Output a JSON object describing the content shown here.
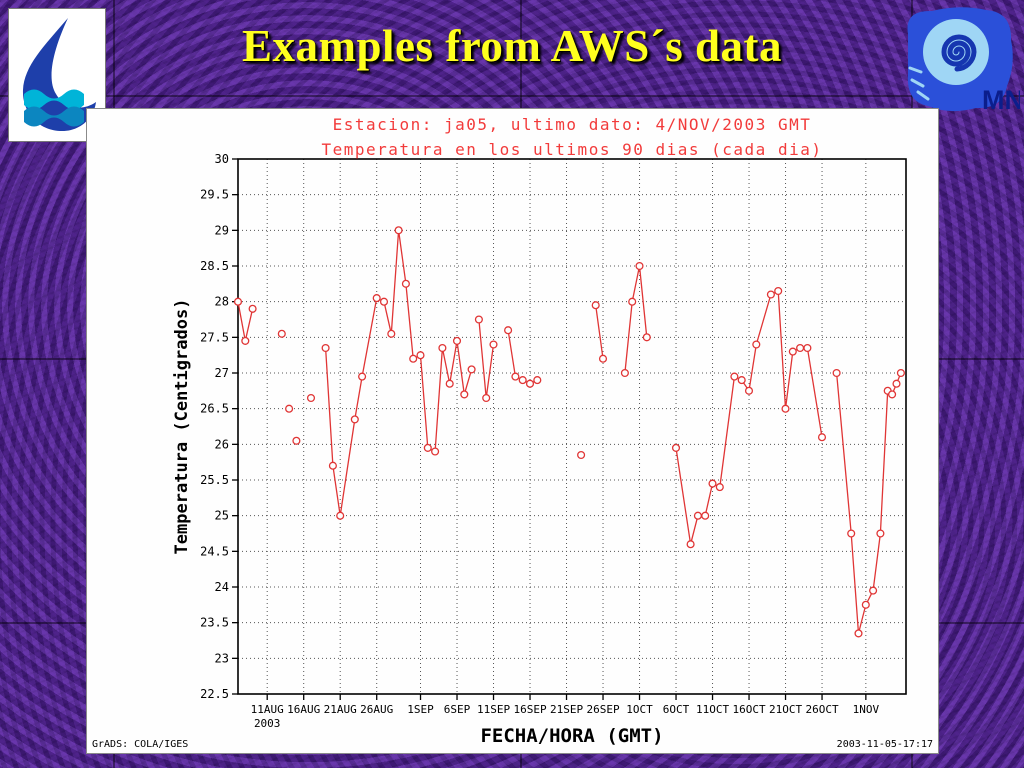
{
  "slide": {
    "title": "Examples from AWS´s data"
  },
  "logos": {
    "left": {
      "name": "water-drop-logo"
    },
    "right": {
      "name": "smn-spiral-logo",
      "text": "MN"
    }
  },
  "chart_data": {
    "type": "line",
    "station_title": "Estacion: ja05, ultimo dato: 4/NOV/2003 GMT",
    "subtitle": "Temperatura en los ultimos 90 dias (cada dia)",
    "ylabel": "Temperatura (Centigrados)",
    "xlabel": "FECHA/HORA (GMT)",
    "footer_left": "GrADS: COLA/IGES",
    "footer_right": "2003-11-05-17:17",
    "ylim": [
      22.5,
      30
    ],
    "ytick_step": 0.5,
    "xlim": [
      0,
      91.5
    ],
    "x_unit": "days since 2003-08-07",
    "year_label": "2003",
    "grid": "dotted",
    "legend": "none",
    "line_color": "#e03535",
    "title_color": "#f23b3b",
    "marker": "open-circle",
    "xticks": [
      {
        "x": 4,
        "label": "11AUG"
      },
      {
        "x": 9,
        "label": "16AUG"
      },
      {
        "x": 14,
        "label": "21AUG"
      },
      {
        "x": 19,
        "label": "26AUG"
      },
      {
        "x": 25,
        "label": "1SEP"
      },
      {
        "x": 30,
        "label": "6SEP"
      },
      {
        "x": 35,
        "label": "11SEP"
      },
      {
        "x": 40,
        "label": "16SEP"
      },
      {
        "x": 45,
        "label": "21SEP"
      },
      {
        "x": 50,
        "label": "26SEP"
      },
      {
        "x": 55,
        "label": "1OCT"
      },
      {
        "x": 60,
        "label": "6OCT"
      },
      {
        "x": 65,
        "label": "11OCT"
      },
      {
        "x": 70,
        "label": "16OCT"
      },
      {
        "x": 75,
        "label": "21OCT"
      },
      {
        "x": 80,
        "label": "26OCT"
      },
      {
        "x": 86,
        "label": "1NOV"
      }
    ],
    "segments": [
      [
        [
          0,
          28.0
        ],
        [
          1,
          27.45
        ],
        [
          2,
          27.9
        ]
      ],
      [
        [
          6,
          27.55
        ]
      ],
      [
        [
          7,
          26.5
        ]
      ],
      [
        [
          8,
          26.05
        ]
      ],
      [
        [
          10,
          26.65
        ]
      ],
      [
        [
          12,
          27.35
        ],
        [
          13,
          25.7
        ],
        [
          14,
          25.0
        ],
        [
          16,
          26.35
        ],
        [
          17,
          26.95
        ],
        [
          19,
          28.05
        ],
        [
          20,
          28.0
        ],
        [
          21,
          27.55
        ],
        [
          22,
          29.0
        ],
        [
          23,
          28.25
        ],
        [
          24,
          27.2
        ],
        [
          25,
          27.25
        ],
        [
          26,
          25.95
        ],
        [
          27,
          25.9
        ],
        [
          28,
          27.35
        ],
        [
          29,
          26.85
        ],
        [
          30,
          27.45
        ],
        [
          31,
          26.7
        ],
        [
          32,
          27.05
        ]
      ],
      [
        [
          33,
          27.75
        ],
        [
          34,
          26.65
        ],
        [
          35,
          27.4
        ]
      ],
      [
        [
          37,
          27.6
        ],
        [
          38,
          26.95
        ],
        [
          39,
          26.9
        ],
        [
          40,
          26.85
        ],
        [
          41,
          26.9
        ]
      ],
      [
        [
          47,
          25.85
        ]
      ],
      [
        [
          49,
          27.95
        ],
        [
          50,
          27.2
        ]
      ],
      [
        [
          53,
          27.0
        ],
        [
          54,
          28.0
        ],
        [
          55,
          28.5
        ],
        [
          56,
          27.5
        ]
      ],
      [
        [
          60,
          25.95
        ],
        [
          62,
          24.6
        ],
        [
          63,
          25.0
        ],
        [
          64,
          25.0
        ],
        [
          65,
          25.45
        ],
        [
          66,
          25.4
        ],
        [
          68,
          26.95
        ],
        [
          69,
          26.9
        ],
        [
          70,
          26.75
        ],
        [
          71,
          27.4
        ],
        [
          73,
          28.1
        ],
        [
          74,
          28.15
        ],
        [
          75,
          26.5
        ],
        [
          76,
          27.3
        ],
        [
          77,
          27.35
        ],
        [
          78,
          27.35
        ],
        [
          80,
          26.1
        ]
      ],
      [
        [
          82,
          27.0
        ],
        [
          84,
          24.75
        ],
        [
          85,
          23.35
        ],
        [
          86,
          23.75
        ],
        [
          87,
          23.95
        ],
        [
          88,
          24.75
        ],
        [
          89,
          26.75
        ],
        [
          89.6,
          26.7
        ],
        [
          90.2,
          26.85
        ],
        [
          90.8,
          27.0
        ]
      ]
    ]
  }
}
